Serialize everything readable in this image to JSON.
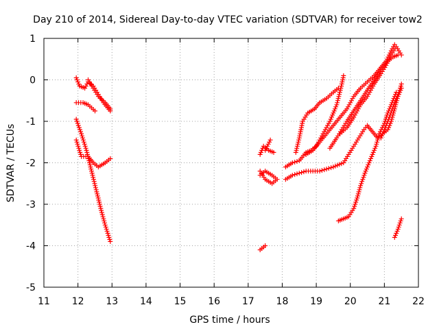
{
  "chart_data": {
    "type": "scatter",
    "title": "Day 210 of 2014, Sidereal Day-to-day VTEC variation (SDTVAR) for receiver tow2",
    "xlabel": "GPS time / hours",
    "ylabel": "SDTVAR / TECUs",
    "xlim": [
      11,
      22
    ],
    "ylim": [
      -5,
      1
    ],
    "xticks": [
      11,
      12,
      13,
      14,
      15,
      16,
      17,
      18,
      19,
      20,
      21,
      22
    ],
    "yticks": [
      1,
      0,
      -1,
      -2,
      -3,
      -4,
      -5
    ],
    "grid": true,
    "marker": "+",
    "marker_color": "#ff0000",
    "segments": [
      {
        "name": "s1",
        "points": [
          [
            11.95,
            0.05
          ],
          [
            12.05,
            -0.15
          ],
          [
            12.2,
            -0.2
          ],
          [
            12.3,
            -0.05
          ],
          [
            12.45,
            -0.15
          ],
          [
            12.6,
            -0.35
          ],
          [
            12.75,
            -0.55
          ],
          [
            12.95,
            -0.75
          ]
        ]
      },
      {
        "name": "s2",
        "points": [
          [
            11.95,
            -0.55
          ],
          [
            12.15,
            -0.55
          ],
          [
            12.3,
            -0.6
          ],
          [
            12.5,
            -0.75
          ]
        ]
      },
      {
        "name": "s3",
        "points": [
          [
            12.3,
            0.0
          ],
          [
            12.45,
            -0.2
          ],
          [
            12.6,
            -0.4
          ],
          [
            12.8,
            -0.55
          ],
          [
            12.95,
            -0.7
          ]
        ]
      },
      {
        "name": "s4",
        "points": [
          [
            11.95,
            -1.45
          ],
          [
            12.1,
            -1.85
          ],
          [
            12.3,
            -1.85
          ],
          [
            12.45,
            -2.0
          ],
          [
            12.6,
            -2.1
          ],
          [
            12.8,
            -2.0
          ],
          [
            12.95,
            -1.9
          ]
        ]
      },
      {
        "name": "s5",
        "points": [
          [
            11.95,
            -0.95
          ],
          [
            12.1,
            -1.3
          ],
          [
            12.25,
            -1.7
          ],
          [
            12.4,
            -2.2
          ],
          [
            12.55,
            -2.7
          ],
          [
            12.7,
            -3.2
          ],
          [
            12.8,
            -3.5
          ],
          [
            12.95,
            -3.9
          ]
        ]
      },
      {
        "name": "s6",
        "points": [
          [
            17.35,
            -4.1
          ],
          [
            17.5,
            -4.0
          ]
        ]
      },
      {
        "name": "s7",
        "points": [
          [
            17.35,
            -1.8
          ],
          [
            17.45,
            -1.6
          ],
          [
            17.6,
            -1.7
          ],
          [
            17.75,
            -1.75
          ]
        ]
      },
      {
        "name": "s8",
        "points": [
          [
            17.5,
            -1.7
          ],
          [
            17.65,
            -1.45
          ]
        ]
      },
      {
        "name": "s9",
        "points": [
          [
            17.35,
            -2.3
          ],
          [
            17.5,
            -2.2
          ],
          [
            17.7,
            -2.3
          ],
          [
            17.85,
            -2.4
          ],
          [
            17.7,
            -2.5
          ],
          [
            17.5,
            -2.4
          ],
          [
            17.35,
            -2.2
          ]
        ]
      },
      {
        "name": "s10",
        "points": [
          [
            18.1,
            -2.1
          ],
          [
            18.3,
            -2.0
          ],
          [
            18.5,
            -1.95
          ],
          [
            18.7,
            -1.75
          ],
          [
            18.85,
            -1.7
          ],
          [
            19.0,
            -1.6
          ],
          [
            19.2,
            -1.3
          ],
          [
            19.4,
            -1.0
          ],
          [
            19.6,
            -0.6
          ],
          [
            19.75,
            -0.1
          ],
          [
            19.8,
            0.1
          ]
        ]
      },
      {
        "name": "s11",
        "points": [
          [
            18.1,
            -2.4
          ],
          [
            18.3,
            -2.3
          ],
          [
            18.5,
            -2.25
          ],
          [
            18.7,
            -2.2
          ],
          [
            18.9,
            -2.2
          ],
          [
            19.1,
            -2.2
          ],
          [
            19.3,
            -2.15
          ],
          [
            19.5,
            -2.1
          ],
          [
            19.8,
            -2.0
          ],
          [
            19.95,
            -1.8
          ],
          [
            20.1,
            -1.6
          ],
          [
            20.25,
            -1.4
          ],
          [
            20.4,
            -1.2
          ],
          [
            20.5,
            -1.1
          ],
          [
            20.65,
            -1.25
          ],
          [
            20.8,
            -1.4
          ],
          [
            20.95,
            -1.3
          ],
          [
            21.1,
            -1.2
          ],
          [
            21.2,
            -1.0
          ],
          [
            21.3,
            -0.7
          ],
          [
            21.4,
            -0.4
          ],
          [
            21.5,
            -0.2
          ]
        ]
      },
      {
        "name": "s12",
        "points": [
          [
            18.4,
            -1.75
          ],
          [
            18.5,
            -1.4
          ],
          [
            18.6,
            -1.0
          ],
          [
            18.75,
            -0.8
          ],
          [
            18.95,
            -0.7
          ],
          [
            19.1,
            -0.55
          ],
          [
            19.3,
            -0.45
          ],
          [
            19.5,
            -0.3
          ],
          [
            19.65,
            -0.2
          ]
        ]
      },
      {
        "name": "s13",
        "points": [
          [
            18.7,
            -1.8
          ],
          [
            18.9,
            -1.7
          ],
          [
            19.1,
            -1.5
          ],
          [
            19.3,
            -1.3
          ],
          [
            19.5,
            -1.1
          ],
          [
            19.7,
            -0.9
          ],
          [
            19.9,
            -0.7
          ],
          [
            20.1,
            -0.4
          ],
          [
            20.3,
            -0.2
          ],
          [
            20.5,
            -0.05
          ],
          [
            20.7,
            0.1
          ],
          [
            20.9,
            0.3
          ],
          [
            21.05,
            0.45
          ],
          [
            21.2,
            0.7
          ],
          [
            21.3,
            0.85
          ]
        ]
      },
      {
        "name": "s14",
        "points": [
          [
            19.4,
            -1.65
          ],
          [
            19.6,
            -1.4
          ],
          [
            19.75,
            -1.2
          ],
          [
            19.9,
            -1.0
          ],
          [
            20.1,
            -0.75
          ],
          [
            20.3,
            -0.5
          ],
          [
            20.5,
            -0.25
          ],
          [
            20.7,
            0.0
          ],
          [
            20.9,
            0.25
          ],
          [
            21.1,
            0.45
          ],
          [
            21.25,
            0.55
          ],
          [
            21.4,
            0.6
          ]
        ]
      },
      {
        "name": "s15",
        "points": [
          [
            19.7,
            -1.3
          ],
          [
            19.9,
            -1.15
          ],
          [
            20.1,
            -0.9
          ],
          [
            20.3,
            -0.6
          ],
          [
            20.5,
            -0.4
          ],
          [
            20.7,
            -0.1
          ],
          [
            20.9,
            0.15
          ],
          [
            21.05,
            0.35
          ],
          [
            21.2,
            0.6
          ],
          [
            21.35,
            0.8
          ],
          [
            21.5,
            0.6
          ]
        ]
      },
      {
        "name": "s16",
        "points": [
          [
            19.65,
            -3.4
          ],
          [
            19.8,
            -3.35
          ],
          [
            19.95,
            -3.3
          ],
          [
            20.1,
            -3.1
          ],
          [
            20.2,
            -2.85
          ],
          [
            20.3,
            -2.55
          ],
          [
            20.45,
            -2.2
          ],
          [
            20.6,
            -1.9
          ],
          [
            20.75,
            -1.6
          ],
          [
            20.85,
            -1.3
          ],
          [
            21.0,
            -1.05
          ],
          [
            21.1,
            -0.8
          ],
          [
            21.25,
            -0.5
          ],
          [
            21.35,
            -0.3
          ]
        ]
      },
      {
        "name": "s17",
        "points": [
          [
            20.9,
            -1.4
          ],
          [
            21.0,
            -1.2
          ],
          [
            21.15,
            -0.9
          ],
          [
            21.3,
            -0.55
          ],
          [
            21.45,
            -0.25
          ],
          [
            21.5,
            -0.1
          ]
        ]
      },
      {
        "name": "s18",
        "points": [
          [
            21.3,
            -3.8
          ],
          [
            21.4,
            -3.6
          ],
          [
            21.5,
            -3.35
          ]
        ]
      }
    ]
  }
}
